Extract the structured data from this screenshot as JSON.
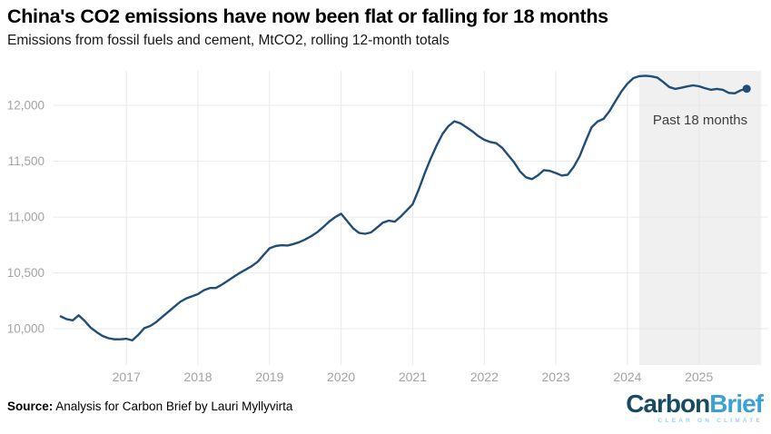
{
  "header": {
    "title": "China's CO2 emissions have now been flat or falling for 18 months",
    "subtitle": "Emissions from fossil fuels and cement, MtCO2, rolling 12-month totals"
  },
  "footer": {
    "source_label": "Source:",
    "source_text": " Analysis for Carbon Brief by Lauri Myllyvirta",
    "logo": {
      "part1": "Carbon",
      "part2": "Brief",
      "tagline": "CLEAR ON CLIMATE",
      "part1_color": "#174a63",
      "part2_color": "#3da0d4",
      "tagline_color": "#9ed2ec"
    }
  },
  "chart_data": {
    "type": "line",
    "title": "China's CO2 emissions have now been flat or falling for 18 months",
    "subtitle": "Emissions from fossil fuels and cement, MtCO2, rolling 12-month totals",
    "ylabel": "MtCO2, rolling 12-month total",
    "xlabel": "",
    "grid": true,
    "xlim": [
      2015.97,
      2025.93
    ],
    "ylim": [
      9675,
      12310
    ],
    "x_ticks": [
      {
        "value": 2017,
        "label": "2017"
      },
      {
        "value": 2018,
        "label": "2018"
      },
      {
        "value": 2019,
        "label": "2019"
      },
      {
        "value": 2020,
        "label": "2020"
      },
      {
        "value": 2021,
        "label": "2021"
      },
      {
        "value": 2022,
        "label": "2022"
      },
      {
        "value": 2023,
        "label": "2023"
      },
      {
        "value": 2024,
        "label": "2024"
      },
      {
        "value": 2025,
        "label": "2025"
      }
    ],
    "y_ticks": [
      {
        "value": 10000,
        "label": "10,000"
      },
      {
        "value": 10500,
        "label": "10,500"
      },
      {
        "value": 11000,
        "label": "11,000"
      },
      {
        "value": 11500,
        "label": "11,500"
      },
      {
        "value": 12000,
        "label": "12,000"
      }
    ],
    "annotation": {
      "label": "Past 18 months",
      "region_start": 2024.167,
      "region_end": 2025.87
    },
    "series": [
      {
        "name": "China CO2 emissions, MtCO2, rolling 12-month total",
        "start_year": 2016,
        "start_month": 2,
        "frequency": "monthly",
        "values": [
          10110,
          10085,
          10075,
          10120,
          10070,
          10010,
          9970,
          9935,
          9915,
          9905,
          9905,
          9910,
          9895,
          9945,
          10005,
          10025,
          10060,
          10105,
          10150,
          10195,
          10240,
          10270,
          10290,
          10310,
          10345,
          10365,
          10365,
          10395,
          10430,
          10465,
          10500,
          10530,
          10560,
          10600,
          10660,
          10720,
          10740,
          10748,
          10745,
          10758,
          10775,
          10800,
          10830,
          10865,
          10910,
          10960,
          11000,
          11030,
          10965,
          10900,
          10858,
          10850,
          10862,
          10905,
          10950,
          10968,
          10958,
          11005,
          11060,
          11115,
          11245,
          11390,
          11520,
          11640,
          11745,
          11815,
          11858,
          11840,
          11805,
          11768,
          11725,
          11692,
          11672,
          11662,
          11620,
          11556,
          11490,
          11408,
          11356,
          11340,
          11374,
          11420,
          11414,
          11394,
          11372,
          11380,
          11450,
          11545,
          11680,
          11805,
          11855,
          11880,
          11950,
          12040,
          12125,
          12195,
          12245,
          12262,
          12266,
          12260,
          12250,
          12210,
          12165,
          12148,
          12158,
          12170,
          12180,
          12172,
          12155,
          12140,
          12148,
          12140,
          12112,
          12108,
          12135,
          12150
        ]
      }
    ],
    "line_color": "#1f4e79",
    "region_color": "#f0f0f0",
    "grid_color": "#e9e9e9",
    "tick_label_color": "#a3a3a3",
    "end_dot": true,
    "legend_position": "none"
  }
}
